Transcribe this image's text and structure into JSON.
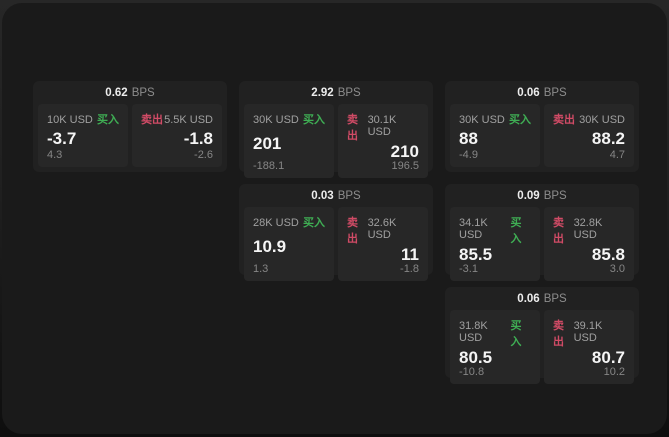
{
  "colors": {
    "buy_accent": "#3fae54",
    "sell_accent": "#d14b66",
    "window_bg": "#1a1a1a",
    "card_bg": "#212121",
    "tile_bg": "#272727"
  },
  "cards": [
    {
      "bps_value": "0.62",
      "bps_unit": "BPS",
      "buy": {
        "side_label": "买入",
        "size": "10K USD",
        "price": "-3.7",
        "sub_value": "4.3"
      },
      "sell": {
        "side_label": "卖出",
        "size": "5.5K USD",
        "price": "-1.8",
        "sub_value": "-2.6"
      }
    },
    {
      "bps_value": "2.92",
      "bps_unit": "BPS",
      "buy": {
        "side_label": "买入",
        "size": "30K USD",
        "price": "201",
        "sub_value": "-188.1"
      },
      "sell": {
        "side_label": "卖出",
        "size": "30.1K USD",
        "price": "210",
        "sub_value": "196.5"
      }
    },
    {
      "bps_value": "0.06",
      "bps_unit": "BPS",
      "buy": {
        "side_label": "买入",
        "size": "30K USD",
        "price": "88",
        "sub_value": "-4.9"
      },
      "sell": {
        "side_label": "卖出",
        "size": "30K USD",
        "price": "88.2",
        "sub_value": "4.7"
      }
    },
    {
      "bps_value": "0.03",
      "bps_unit": "BPS",
      "buy": {
        "side_label": "买入",
        "size": "28K USD",
        "price": "10.9",
        "sub_value": "1.3"
      },
      "sell": {
        "side_label": "卖出",
        "size": "32.6K USD",
        "price": "11",
        "sub_value": "-1.8"
      }
    },
    {
      "bps_value": "0.09",
      "bps_unit": "BPS",
      "buy": {
        "side_label": "买入",
        "size": "34.1K USD",
        "price": "85.5",
        "sub_value": "-3.1"
      },
      "sell": {
        "side_label": "卖出",
        "size": "32.8K USD",
        "price": "85.8",
        "sub_value": "3.0"
      }
    },
    {
      "bps_value": "0.06",
      "bps_unit": "BPS",
      "buy": {
        "side_label": "买入",
        "size": "31.8K USD",
        "price": "80.5",
        "sub_value": "-10.8"
      },
      "sell": {
        "side_label": "卖出",
        "size": "39.1K USD",
        "price": "80.7",
        "sub_value": "10.2"
      }
    }
  ]
}
